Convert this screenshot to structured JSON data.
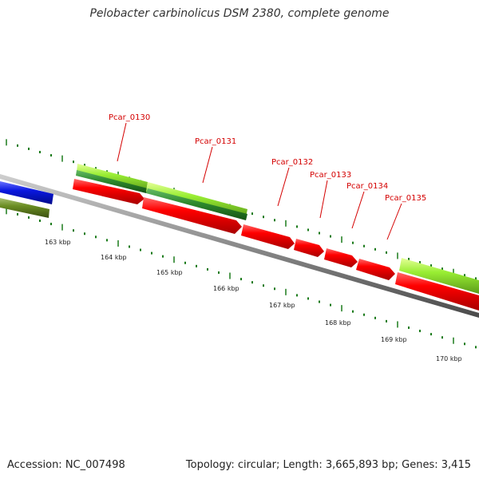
{
  "header": {
    "title": "Pelobacter carbinolicus DSM 2380, complete genome"
  },
  "footer": {
    "accession": "Accession: NC_007498",
    "stats": "Topology: circular; Length: 3,665,893 bp; Genes: 3,415"
  },
  "gene_labels": [
    "Pcar_0130",
    "Pcar_0131",
    "Pcar_0132",
    "Pcar_0133",
    "Pcar_0134",
    "Pcar_0135"
  ],
  "position_labels": [
    "163 kbp",
    "164 kbp",
    "165 kbp",
    "166 kbp",
    "167 kbp",
    "168 kbp",
    "169 kbp",
    "170 kbp"
  ],
  "colors": {
    "backbone": "#8a8a8a",
    "forward_cds": "#ee0000",
    "light_feature": "#99ee33",
    "dark_feature": "#2e8b2e",
    "blue_feature": "#0a18e0",
    "olive_feature": "#6b8e23",
    "tick": "#1a7a1a",
    "label": "#d40000"
  }
}
